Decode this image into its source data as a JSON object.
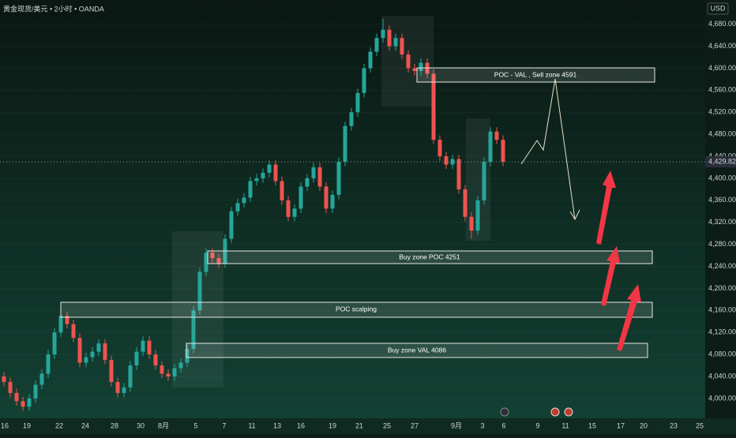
{
  "chart_data": {
    "type": "candlestick",
    "title": "黄金现货/美元 • 2小时 • OANDA",
    "currency": "USD",
    "up_color": "#26a69a",
    "down_color": "#ef5350",
    "ohlc": [
      [
        4040,
        4048,
        4022,
        4030
      ],
      [
        4030,
        4038,
        4002,
        4010
      ],
      [
        4010,
        4018,
        3987,
        3995
      ],
      [
        3995,
        4003,
        3977,
        3985
      ],
      [
        3985,
        4008,
        3977,
        4000
      ],
      [
        4000,
        4033,
        3992,
        4025
      ],
      [
        4025,
        4053,
        4017,
        4045
      ],
      [
        4045,
        4088,
        4037,
        4080
      ],
      [
        4080,
        4128,
        4072,
        4120
      ],
      [
        4120,
        4158,
        4112,
        4150
      ],
      [
        4150,
        4158,
        4127,
        4135
      ],
      [
        4135,
        4143,
        4102,
        4110
      ],
      [
        4110,
        4118,
        4057,
        4065
      ],
      [
        4065,
        4083,
        4057,
        4075
      ],
      [
        4075,
        4093,
        4067,
        4085
      ],
      [
        4085,
        4108,
        4077,
        4100
      ],
      [
        4100,
        4108,
        4062,
        4070
      ],
      [
        4070,
        4078,
        4022,
        4030
      ],
      [
        4030,
        4038,
        4002,
        4010
      ],
      [
        4010,
        4028,
        4002,
        4020
      ],
      [
        4020,
        4068,
        4012,
        4060
      ],
      [
        4060,
        4093,
        4052,
        4085
      ],
      [
        4085,
        4113,
        4077,
        4105
      ],
      [
        4105,
        4113,
        4072,
        4080
      ],
      [
        4080,
        4088,
        4052,
        4060
      ],
      [
        4060,
        4068,
        4037,
        4045
      ],
      [
        4045,
        4053,
        4032,
        4040
      ],
      [
        4040,
        4063,
        4032,
        4055
      ],
      [
        4055,
        4073,
        4047,
        4065
      ],
      [
        4065,
        4098,
        4057,
        4090
      ],
      [
        4090,
        4168,
        4082,
        4160
      ],
      [
        4160,
        4238,
        4152,
        4230
      ],
      [
        4230,
        4273,
        4222,
        4265
      ],
      [
        4265,
        4273,
        4247,
        4255
      ],
      [
        4255,
        4263,
        4237,
        4245
      ],
      [
        4245,
        4298,
        4237,
        4290
      ],
      [
        4290,
        4348,
        4282,
        4340
      ],
      [
        4340,
        4363,
        4332,
        4355
      ],
      [
        4355,
        4373,
        4347,
        4365
      ],
      [
        4365,
        4403,
        4357,
        4395
      ],
      [
        4395,
        4408,
        4387,
        4400
      ],
      [
        4400,
        4418,
        4392,
        4410
      ],
      [
        4410,
        4433,
        4402,
        4425
      ],
      [
        4425,
        4433,
        4387,
        4395
      ],
      [
        4395,
        4403,
        4352,
        4360
      ],
      [
        4360,
        4368,
        4322,
        4330
      ],
      [
        4330,
        4353,
        4322,
        4345
      ],
      [
        4345,
        4393,
        4337,
        4385
      ],
      [
        4385,
        4408,
        4377,
        4400
      ],
      [
        4400,
        4428,
        4392,
        4420
      ],
      [
        4420,
        4428,
        4377,
        4385
      ],
      [
        4385,
        4393,
        4337,
        4345
      ],
      [
        4345,
        4378,
        4337,
        4370
      ],
      [
        4370,
        4438,
        4362,
        4430
      ],
      [
        4430,
        4503,
        4422,
        4495
      ],
      [
        4495,
        4528,
        4487,
        4520
      ],
      [
        4520,
        4563,
        4512,
        4555
      ],
      [
        4555,
        4608,
        4547,
        4600
      ],
      [
        4600,
        4638,
        4592,
        4630
      ],
      [
        4630,
        4663,
        4622,
        4655
      ],
      [
        4655,
        4690,
        4647,
        4670
      ],
      [
        4670,
        4678,
        4632,
        4640
      ],
      [
        4640,
        4663,
        4632,
        4655
      ],
      [
        4655,
        4663,
        4617,
        4625
      ],
      [
        4625,
        4633,
        4592,
        4600
      ],
      [
        4600,
        4608,
        4587,
        4595
      ],
      [
        4595,
        4618,
        4587,
        4610
      ],
      [
        4610,
        4618,
        4582,
        4590
      ],
      [
        4590,
        4598,
        4462,
        4470
      ],
      [
        4470,
        4478,
        4432,
        4440
      ],
      [
        4440,
        4448,
        4417,
        4425
      ],
      [
        4425,
        4443,
        4417,
        4435
      ],
      [
        4435,
        4443,
        4372,
        4380
      ],
      [
        4380,
        4388,
        4322,
        4330
      ],
      [
        4330,
        4338,
        4290,
        4305
      ],
      [
        4305,
        4368,
        4297,
        4360
      ],
      [
        4360,
        4438,
        4352,
        4430
      ],
      [
        4430,
        4493,
        4422,
        4485
      ],
      [
        4485,
        4493,
        4462,
        4470
      ],
      [
        4470,
        4478,
        4422,
        4430
      ]
    ],
    "ylim": [
      3964,
      4724
    ],
    "yticks": [
      {
        "value": 4000,
        "label": "4,000.000"
      },
      {
        "value": 4040,
        "label": "4,040.000"
      },
      {
        "value": 4080,
        "label": "4,080.000"
      },
      {
        "value": 4120,
        "label": "4,120.000"
      },
      {
        "value": 4160,
        "label": "4,160.000"
      },
      {
        "value": 4200,
        "label": "4,200.000"
      },
      {
        "value": 4240,
        "label": "4,240.000"
      },
      {
        "value": 4280,
        "label": "4,280.000"
      },
      {
        "value": 4320,
        "label": "4,320.000"
      },
      {
        "value": 4360,
        "label": "4,360.000"
      },
      {
        "value": 4400,
        "label": "4,400.000"
      },
      {
        "value": 4440,
        "label": "4,440.000"
      },
      {
        "value": 4480,
        "label": "4,480.000"
      },
      {
        "value": 4520,
        "label": "4,520.000"
      },
      {
        "value": 4560,
        "label": "4,560.000"
      },
      {
        "value": 4600,
        "label": "4,600.000"
      },
      {
        "value": 4640,
        "label": "4,640.000"
      },
      {
        "value": 4680,
        "label": "4,680.000"
      }
    ],
    "current_price": {
      "value": 4429.825,
      "label": "4,429.825"
    },
    "xlabels": [
      "16",
      "19",
      "22",
      "24",
      "28",
      "30",
      "8月",
      "5",
      "7",
      "11",
      "13",
      "16",
      "19",
      "21",
      "25",
      "27",
      "9月",
      "3",
      "6",
      "9",
      "11",
      "15",
      "17",
      "20",
      "23",
      "25"
    ],
    "annotations": [
      "POC - VAL , Sell zone 4591",
      "Buy zone POC 4251",
      "POC scalping",
      "Buy zone VAL 4086"
    ]
  }
}
